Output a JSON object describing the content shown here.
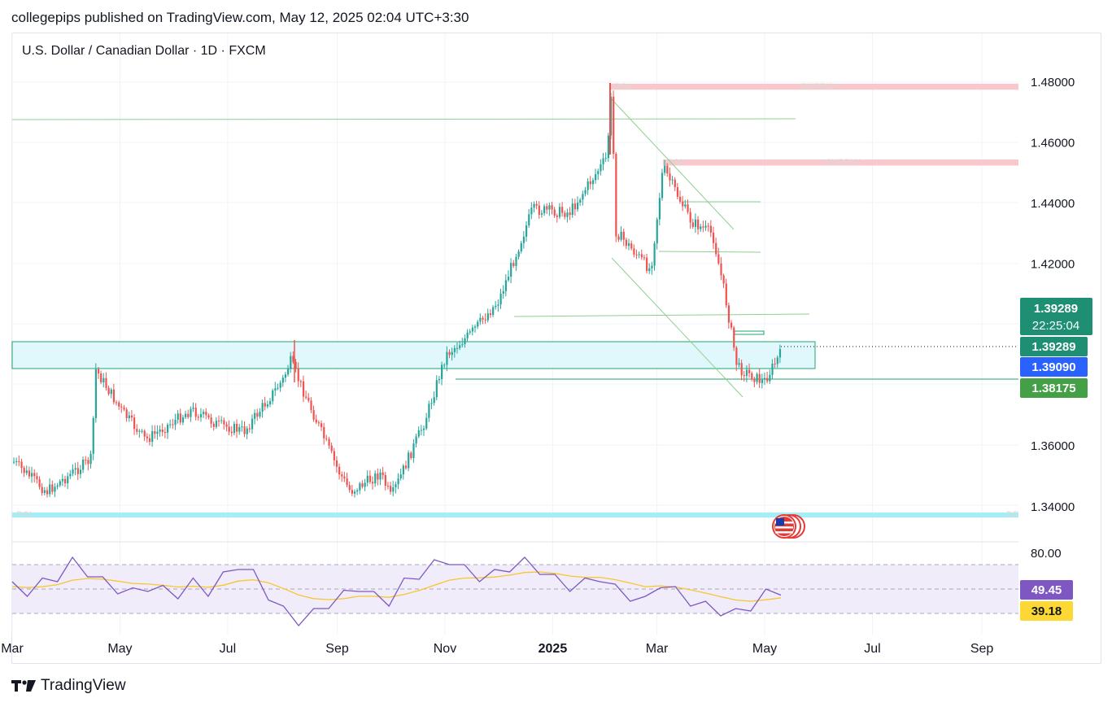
{
  "header": {
    "publisher_line": "collegepips published on TradingView.com, May 12, 2025 02:04 UTC+3:30",
    "symbol_line": "U.S. Dollar / Canadian Dollar · 1D · FXCM"
  },
  "footer": {
    "brand": "TradingView"
  },
  "colors": {
    "up": "#26a69a",
    "down": "#ef5350",
    "zone_fill": "#e0f7fc",
    "zone_stroke": "#22a66b",
    "trendline": "#8fcf8f",
    "supply": "#f9c8cc",
    "demand": "#a6eef5",
    "rsi": "#7e57c2",
    "rsi_ma": "#f7c62f",
    "price_tag": "#1e8f73",
    "blue_tag": "#2962ff",
    "green_tag": "#43a047",
    "rsi_tag": "#7e57c2",
    "ma_tag": "#fdd835"
  },
  "price_axis": {
    "ticks": [
      "1.48000",
      "1.46000",
      "1.44000",
      "1.42000",
      "1.36000",
      "1.34000"
    ],
    "tick_values": [
      1.48,
      1.46,
      1.44,
      1.42,
      1.36,
      1.34
    ]
  },
  "price_labels": {
    "last_price": "1.39289",
    "countdown": "22:25:04",
    "zone_top": "1.39289",
    "zone_bottom": "1.39090",
    "support": "1.38175"
  },
  "rsi_axis": {
    "tick": "80.00",
    "rsi_value": "49.45",
    "rsi_ma_value": "39.18"
  },
  "time_axis": {
    "labels": [
      "Mar",
      "May",
      "Jul",
      "Sep",
      "Nov",
      "2025",
      "Mar",
      "May",
      "Jul",
      "Sep"
    ]
  },
  "annotations": {
    "poi_top": "POI",
    "supply_top": "SUPPLY",
    "poi_mid": "POI",
    "supply_mid": "SUPPLY",
    "poi_bottom": "POI",
    "demand_bottom": "DE"
  },
  "chart_data": {
    "type": "candlestick",
    "symbol": "U.S. Dollar / Canadian Dollar",
    "timeframe": "1D",
    "x_range": [
      "2024-03",
      "2025-05-12"
    ],
    "y_range": [
      1.34,
      1.48
    ],
    "close_path": [
      {
        "date": "2024-03-01",
        "close": 1.355
      },
      {
        "date": "2024-03-20",
        "close": 1.345
      },
      {
        "date": "2024-04-15",
        "close": 1.356
      },
      {
        "date": "2024-04-16",
        "close": 1.386
      },
      {
        "date": "2024-05-01",
        "close": 1.372
      },
      {
        "date": "2024-05-15",
        "close": 1.362
      },
      {
        "date": "2024-06-10",
        "close": 1.372
      },
      {
        "date": "2024-06-25",
        "close": 1.367
      },
      {
        "date": "2024-07-10",
        "close": 1.365
      },
      {
        "date": "2024-08-01",
        "close": 1.382
      },
      {
        "date": "2024-08-05",
        "close": 1.388
      },
      {
        "date": "2024-08-20",
        "close": 1.368
      },
      {
        "date": "2024-09-01",
        "close": 1.352
      },
      {
        "date": "2024-09-08",
        "close": 1.345
      },
      {
        "date": "2024-09-25",
        "close": 1.351
      },
      {
        "date": "2024-10-01",
        "close": 1.343
      },
      {
        "date": "2024-10-20",
        "close": 1.368
      },
      {
        "date": "2024-11-01",
        "close": 1.39
      },
      {
        "date": "2024-11-15",
        "close": 1.397
      },
      {
        "date": "2024-12-01",
        "close": 1.408
      },
      {
        "date": "2024-12-20",
        "close": 1.438
      },
      {
        "date": "2025-01-10",
        "close": 1.437
      },
      {
        "date": "2025-01-31",
        "close": 1.455
      },
      {
        "date": "2025-02-03",
        "close": 1.478
      },
      {
        "date": "2025-02-05",
        "close": 1.431
      },
      {
        "date": "2025-02-25",
        "close": 1.418
      },
      {
        "date": "2025-03-04",
        "close": 1.452
      },
      {
        "date": "2025-03-20",
        "close": 1.434
      },
      {
        "date": "2025-04-01",
        "close": 1.43
      },
      {
        "date": "2025-04-08",
        "close": 1.41
      },
      {
        "date": "2025-04-15",
        "close": 1.386
      },
      {
        "date": "2025-04-30",
        "close": 1.381
      },
      {
        "date": "2025-05-12",
        "close": 1.39289
      }
    ],
    "zones": [
      {
        "name": "POI / SUPPLY",
        "from": 1.4775,
        "to": 1.4795
      },
      {
        "name": "POI / SUPPLY",
        "from": 1.4525,
        "to": 1.4545
      },
      {
        "name": "Demand zone",
        "from": 1.3909,
        "to": 1.3929
      },
      {
        "name": "POI / DE",
        "from": 1.3364,
        "to": 1.3381
      }
    ],
    "levels": [
      1.4675,
      1.4407,
      1.4238,
      1.4025,
      1.38175
    ],
    "rsi": {
      "value": 49.45,
      "ma": 39.18,
      "bands": [
        70,
        50,
        30
      ],
      "series": [
        52,
        48,
        55,
        60,
        72,
        64,
        56,
        50,
        47,
        52,
        49,
        46,
        55,
        48,
        60,
        70,
        62,
        45,
        32,
        24,
        30,
        38,
        45,
        52,
        44,
        40,
        55,
        62,
        70,
        74,
        66,
        60,
        62,
        68,
        72,
        66,
        58,
        52,
        55,
        60,
        50,
        44,
        40,
        55,
        48,
        40,
        36,
        32,
        30,
        36,
        46,
        49
      ]
    }
  }
}
